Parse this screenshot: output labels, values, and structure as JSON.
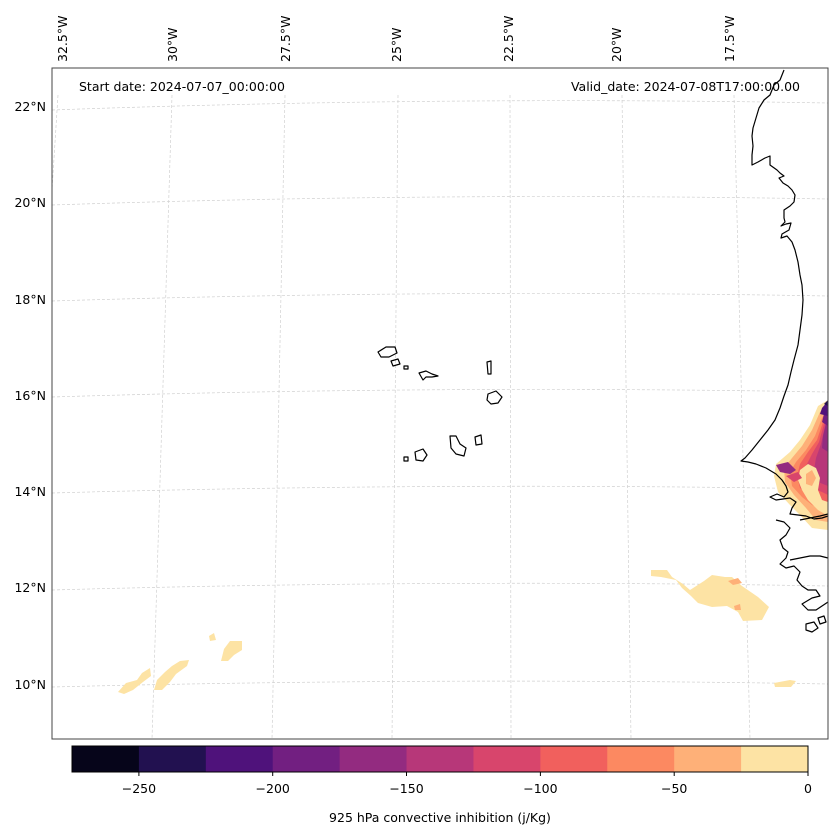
{
  "info": {
    "start_date": "Start date: 2024-07-07_00:00:00",
    "valid_date": "Valid_date: 2024-07-08T17:00:00.00"
  },
  "longitude_labels": [
    "32.5°W",
    "30°W",
    "27.5°W",
    "25°W",
    "22.5°W",
    "20°W",
    "17.5°W"
  ],
  "latitude_labels": [
    "22°N",
    "20°N",
    "18°N",
    "16°N",
    "14°N",
    "12°N",
    "10°N"
  ],
  "colorbar": {
    "title": "925 hPa convective inhibition (j/Kg)",
    "ticks": [
      "−250",
      "−200",
      "−150",
      "−100",
      "−50",
      "0"
    ],
    "colors": [
      "#06051a",
      "#221150",
      "#4f127b",
      "#721f81",
      "#932b80",
      "#b73779",
      "#d8456c",
      "#f1605d",
      "#fc8961",
      "#feb078",
      "#fde3a4"
    ]
  },
  "chart_data": {
    "type": "heatmap",
    "title": "",
    "field": "925 hPa convective inhibition (j/Kg)",
    "units": "j/Kg",
    "contour_levels": [
      -275,
      -250,
      -225,
      -200,
      -175,
      -150,
      -125,
      -100,
      -75,
      -50,
      -25,
      0
    ],
    "lon_range": [
      -33,
      -16.5
    ],
    "lat_range": [
      9,
      22.5
    ],
    "regions": [
      {
        "area": "Senegal/Mauritania coast (~14–15.5°N, 16.5–17.5°W)",
        "min_value": -275,
        "max_value": -25
      },
      {
        "area": "Off Guinea-Bissau (~11.3–12.2°N, 18–20.5°W)",
        "min_value": -50,
        "max_value": -25
      },
      {
        "area": "Southwest patches (~10–11°N, 27.5–31°W)",
        "min_value": -25,
        "max_value": 0
      },
      {
        "area": "South patch (~10°N, 17.5°W)",
        "min_value": -25,
        "max_value": 0
      }
    ],
    "grid": true
  }
}
